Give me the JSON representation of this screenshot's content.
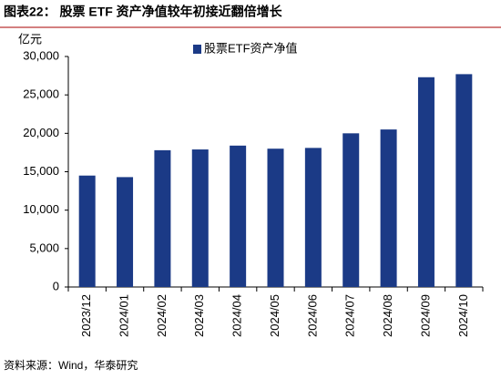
{
  "chart_data": {
    "type": "bar",
    "title": "图表22：  股票 ETF 资产净值较年初接近翻倍增长",
    "y_label": "亿元",
    "source": "资料来源：Wind，华泰研究",
    "categories": [
      "2023/12",
      "2024/01",
      "2024/02",
      "2024/03",
      "2024/04",
      "2024/05",
      "2024/06",
      "2024/07",
      "2024/08",
      "2024/09",
      "2024/10"
    ],
    "series": [
      {
        "name": "股票ETF资产净值",
        "color": "#1b3a86",
        "values": [
          14500,
          14300,
          17800,
          17900,
          18400,
          18000,
          18100,
          20000,
          20500,
          27300,
          27700
        ]
      }
    ],
    "ylim": [
      0,
      30000
    ],
    "yticks": [
      0,
      {
        "value": 5000,
        "label": "5,000"
      },
      {
        "value": 10000,
        "label": "10,000"
      },
      {
        "value": 15000,
        "label": "15,000"
      },
      {
        "value": 20000,
        "label": "20,000"
      },
      {
        "value": 25000,
        "label": "25,000"
      },
      {
        "value": 30000,
        "label": "30,000"
      }
    ],
    "legend": "top"
  }
}
